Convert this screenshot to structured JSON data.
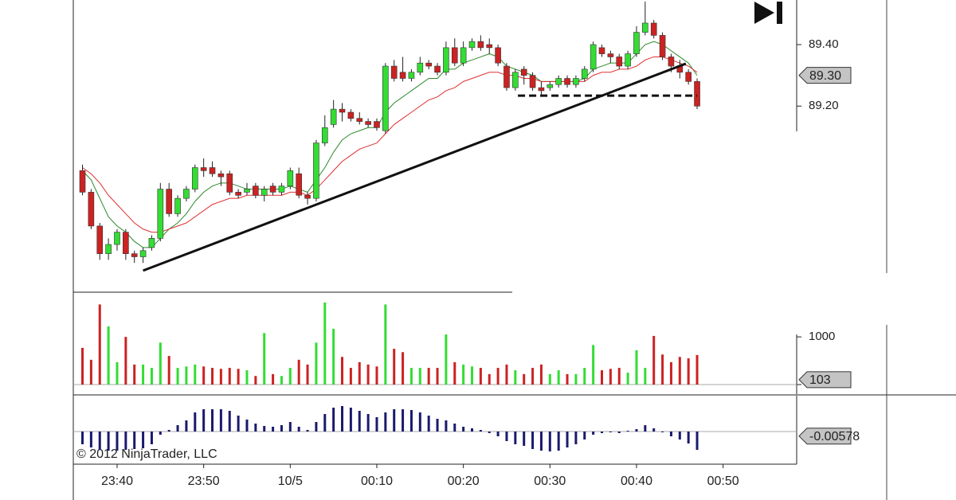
{
  "chart_data": [
    {
      "type": "candlestick",
      "x": [
        -4,
        -3,
        -2,
        -1,
        0,
        1,
        2,
        3,
        4,
        5,
        6,
        7,
        8,
        9,
        10,
        11,
        12,
        13,
        14,
        15,
        16,
        17,
        18,
        19,
        20,
        21,
        22,
        23,
        24,
        25,
        26,
        27,
        28,
        29,
        30,
        31,
        32,
        33,
        34,
        35,
        36,
        37,
        38,
        39,
        40,
        41,
        42,
        43,
        44,
        45,
        46,
        47,
        48,
        49,
        50,
        51,
        52,
        53,
        54,
        55,
        56,
        57,
        58,
        59,
        60,
        61,
        62,
        63,
        64,
        65,
        66,
        67
      ],
      "open": [
        88.99,
        88.92,
        88.81,
        88.72,
        88.75,
        88.79,
        88.72,
        88.71,
        88.74,
        88.77,
        88.93,
        88.85,
        88.9,
        88.93,
        89.0,
        89.0,
        88.98,
        88.98,
        88.92,
        88.92,
        88.94,
        88.91,
        88.94,
        88.92,
        88.94,
        88.98,
        88.91,
        88.9,
        89.08,
        89.14,
        89.19,
        89.18,
        89.16,
        89.15,
        89.15,
        89.12,
        89.33,
        89.31,
        89.29,
        89.31,
        89.34,
        89.33,
        89.31,
        89.39,
        89.34,
        89.39,
        89.41,
        89.4,
        89.39,
        89.33,
        89.26,
        89.32,
        89.3,
        89.26,
        89.26,
        89.27,
        89.29,
        89.27,
        89.29,
        89.32,
        89.39,
        89.37,
        89.36,
        89.33,
        89.37,
        89.44,
        89.47,
        89.43,
        89.36,
        89.33,
        89.31,
        89.28
      ],
      "high": [
        89.01,
        88.93,
        88.82,
        88.77,
        88.8,
        88.8,
        88.73,
        88.74,
        88.78,
        88.95,
        88.95,
        88.91,
        88.94,
        89.01,
        89.03,
        89.02,
        88.99,
        88.99,
        88.93,
        88.95,
        88.95,
        88.94,
        88.95,
        88.95,
        89.0,
        89.0,
        88.92,
        89.09,
        89.17,
        89.22,
        89.21,
        89.19,
        89.18,
        89.16,
        89.16,
        89.34,
        89.35,
        89.36,
        89.32,
        89.36,
        89.35,
        89.34,
        89.41,
        89.42,
        89.41,
        89.42,
        89.43,
        89.42,
        89.4,
        89.34,
        89.32,
        89.33,
        89.31,
        89.28,
        89.28,
        89.3,
        89.3,
        89.3,
        89.33,
        89.41,
        89.4,
        89.38,
        89.37,
        89.38,
        89.46,
        89.54,
        89.48,
        89.44,
        89.37,
        89.35,
        89.32,
        89.29
      ],
      "low": [
        88.91,
        88.8,
        88.7,
        88.7,
        88.73,
        88.7,
        88.69,
        88.69,
        88.73,
        88.76,
        88.84,
        88.84,
        88.89,
        88.92,
        88.97,
        88.97,
        88.94,
        88.91,
        88.9,
        88.91,
        88.9,
        88.89,
        88.91,
        88.91,
        88.93,
        88.9,
        88.88,
        88.89,
        89.07,
        89.13,
        89.15,
        89.15,
        89.14,
        89.13,
        89.12,
        89.11,
        89.28,
        89.28,
        89.28,
        89.3,
        89.32,
        89.3,
        89.3,
        89.33,
        89.33,
        89.38,
        89.38,
        89.37,
        89.33,
        89.25,
        89.25,
        89.27,
        89.25,
        89.23,
        89.25,
        89.26,
        89.26,
        89.26,
        89.28,
        89.31,
        89.36,
        89.34,
        89.32,
        89.32,
        89.36,
        89.43,
        89.42,
        89.35,
        89.31,
        89.29,
        89.27,
        89.19
      ],
      "close": [
        88.92,
        88.81,
        88.72,
        88.75,
        88.79,
        88.72,
        88.71,
        88.73,
        88.77,
        88.93,
        88.85,
        88.9,
        88.93,
        89.0,
        88.99,
        88.98,
        88.97,
        88.92,
        88.91,
        88.93,
        88.91,
        88.93,
        88.92,
        88.94,
        88.99,
        88.91,
        88.9,
        89.08,
        89.13,
        89.19,
        89.18,
        89.16,
        89.15,
        89.14,
        89.13,
        89.33,
        89.29,
        89.29,
        89.31,
        89.34,
        89.33,
        89.31,
        89.39,
        89.34,
        89.39,
        89.41,
        89.39,
        89.39,
        89.34,
        89.26,
        89.31,
        89.3,
        89.26,
        89.25,
        89.27,
        89.29,
        89.27,
        89.29,
        89.32,
        89.4,
        89.37,
        89.36,
        89.33,
        89.37,
        89.44,
        89.47,
        89.43,
        89.36,
        89.33,
        89.31,
        89.28,
        89.2
      ],
      "up_color": "#33dd33",
      "down_color": "#cc2222",
      "series": [
        {
          "color": "#2a8a2a",
          "values": [
            88.99,
            88.96,
            88.9,
            88.84,
            88.81,
            88.79,
            88.76,
            88.74,
            88.74,
            88.77,
            88.8,
            88.82,
            88.85,
            88.89,
            88.92,
            88.94,
            88.95,
            88.95,
            88.94,
            88.93,
            88.93,
            88.93,
            88.93,
            88.93,
            88.94,
            88.93,
            88.92,
            88.96,
            89.0,
            89.05,
            89.09,
            89.11,
            89.12,
            89.13,
            89.13,
            89.18,
            89.21,
            89.23,
            89.25,
            89.27,
            89.29,
            89.29,
            89.32,
            89.32,
            89.34,
            89.35,
            89.36,
            89.37,
            89.36,
            89.33,
            89.32,
            89.31,
            89.3,
            89.28,
            89.28,
            89.28,
            89.28,
            89.28,
            89.29,
            89.32,
            89.33,
            89.34,
            89.34,
            89.34,
            89.37,
            89.4,
            89.41,
            89.4,
            89.38,
            89.36,
            89.34,
            89.3
          ]
        },
        {
          "color": "#e03030",
          "values": [
            89.0,
            88.98,
            88.95,
            88.91,
            88.88,
            88.85,
            88.82,
            88.8,
            88.79,
            88.79,
            88.8,
            88.81,
            88.82,
            88.84,
            88.86,
            88.88,
            88.89,
            88.9,
            88.9,
            88.91,
            88.91,
            88.91,
            88.91,
            88.91,
            88.92,
            88.92,
            88.91,
            88.93,
            88.96,
            88.99,
            89.02,
            89.04,
            89.06,
            89.07,
            89.08,
            89.11,
            89.14,
            89.16,
            89.18,
            89.2,
            89.22,
            89.23,
            89.25,
            89.26,
            89.28,
            89.29,
            89.3,
            89.31,
            89.31,
            89.3,
            89.3,
            89.29,
            89.29,
            89.28,
            89.28,
            89.28,
            89.28,
            89.28,
            89.28,
            89.3,
            89.31,
            89.31,
            89.32,
            89.32,
            89.33,
            89.35,
            89.36,
            89.36,
            89.35,
            89.34,
            89.33,
            89.31
          ]
        }
      ],
      "lines": [
        {
          "x": [
            3,
            65.7
          ],
          "y": [
            88.665,
            89.338
          ],
          "style": "solid"
        },
        {
          "x": [
            46.3,
            67
          ],
          "y": [
            89.234,
            89.234
          ],
          "style": "dashed"
        }
      ],
      "xlim": [
        -5.06,
        78.5
      ],
      "ylim": [
        88.6,
        89.545
      ],
      "yticks": [
        {
          "value": 89.4,
          "label": "89.40"
        },
        {
          "value": 89.2,
          "label": "89.20"
        }
      ],
      "current_value": {
        "value": 89.3,
        "label": "89.30"
      }
    },
    {
      "type": "bar",
      "x": [
        -4,
        -3,
        -2,
        -1,
        0,
        1,
        2,
        3,
        4,
        5,
        6,
        7,
        8,
        9,
        10,
        11,
        12,
        13,
        14,
        15,
        16,
        17,
        18,
        19,
        20,
        21,
        22,
        23,
        24,
        25,
        26,
        27,
        28,
        29,
        30,
        31,
        32,
        33,
        34,
        35,
        36,
        37,
        38,
        39,
        40,
        41,
        42,
        43,
        44,
        45,
        46,
        47,
        48,
        49,
        50,
        51,
        52,
        53,
        54,
        55,
        56,
        57,
        58,
        59,
        60,
        61,
        62,
        63,
        64,
        65,
        66,
        67
      ],
      "values": [
        770,
        520,
        1680,
        1220,
        470,
        1000,
        420,
        420,
        350,
        880,
        600,
        350,
        380,
        420,
        380,
        350,
        330,
        350,
        330,
        300,
        180,
        1080,
        220,
        180,
        350,
        520,
        420,
        880,
        1720,
        1170,
        580,
        350,
        470,
        420,
        380,
        1680,
        750,
        680,
        350,
        350,
        350,
        350,
        1050,
        470,
        420,
        380,
        350,
        220,
        350,
        420,
        300,
        220,
        350,
        420,
        220,
        300,
        220,
        220,
        350,
        830,
        300,
        330,
        350,
        250,
        720,
        350,
        1020,
        630,
        470,
        580,
        550,
        620
      ],
      "xlim": [
        -5.06,
        78.5
      ],
      "ylim": [
        -200,
        1920
      ],
      "yticks": [
        0,
        1000
      ],
      "current_value": 103
    },
    {
      "type": "bar",
      "x": [
        -4,
        -3,
        -2,
        -1,
        0,
        1,
        2,
        3,
        4,
        5,
        6,
        7,
        8,
        9,
        10,
        11,
        12,
        13,
        14,
        15,
        16,
        17,
        18,
        19,
        20,
        21,
        22,
        23,
        24,
        25,
        26,
        27,
        28,
        29,
        30,
        31,
        32,
        33,
        34,
        35,
        36,
        37,
        38,
        39,
        40,
        41,
        42,
        43,
        44,
        45,
        46,
        47,
        48,
        49,
        50,
        51,
        52,
        53,
        54,
        55,
        56,
        57,
        58,
        59,
        60,
        61,
        62,
        63,
        64,
        65,
        66,
        67
      ],
      "values": [
        -0.016,
        -0.02,
        -0.023,
        -0.024,
        -0.024,
        -0.023,
        -0.022,
        -0.021,
        -0.016,
        -0.004,
        0.002,
        0.008,
        0.014,
        0.024,
        0.028,
        0.028,
        0.028,
        0.026,
        0.02,
        0.015,
        0.01,
        0.007,
        0.006,
        0.008,
        0.012,
        0.006,
        0.002,
        0.012,
        0.022,
        0.03,
        0.032,
        0.03,
        0.026,
        0.022,
        0.018,
        0.024,
        0.028,
        0.028,
        0.027,
        0.024,
        0.02,
        0.016,
        0.014,
        0.01,
        0.006,
        0.004,
        0.002,
        -0.002,
        -0.006,
        -0.012,
        -0.016,
        -0.018,
        -0.022,
        -0.024,
        -0.025,
        -0.024,
        -0.02,
        -0.016,
        -0.01,
        -0.004,
        -0.002,
        -0.001,
        -0.002,
        0.001,
        0.003,
        0.008,
        0.004,
        -0.001,
        -0.006,
        -0.01,
        -0.015,
        -0.023
      ],
      "color": "#1a1a6e",
      "xlim": [
        -5.06,
        78.5
      ],
      "ylim": [
        -0.041,
        0.045
      ],
      "xticks": [
        {
          "value": 0,
          "label": "23:40"
        },
        {
          "value": 10,
          "label": "23:50"
        },
        {
          "value": 20,
          "label": "10/5"
        },
        {
          "value": 30,
          "label": "00:10"
        },
        {
          "value": 40,
          "label": "00:20"
        },
        {
          "value": 50,
          "label": "00:30"
        },
        {
          "value": 60,
          "label": "00:40"
        },
        {
          "value": 70,
          "label": "00:50"
        }
      ],
      "current_value": -0.00578,
      "annotation": "© 2012 NinjaTrader, LLC"
    }
  ]
}
